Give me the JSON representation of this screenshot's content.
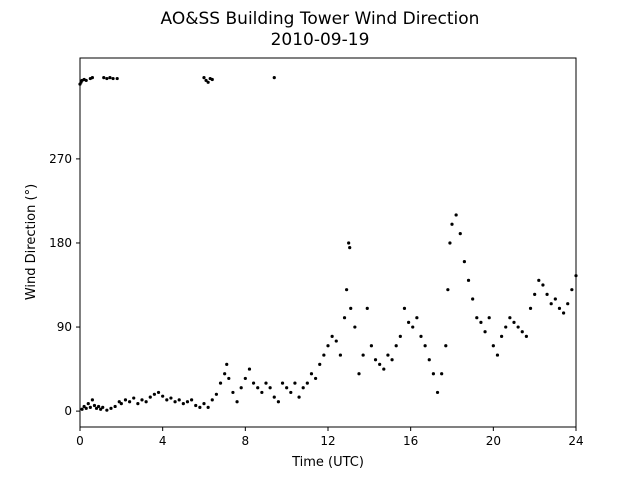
{
  "chart_data": {
    "type": "scatter",
    "title": "AO&SS Building Tower Wind Direction",
    "subtitle": "2010-09-19",
    "xlabel": "Time (UTC)",
    "ylabel": "Wind Direction (°)",
    "xlim": [
      0,
      24
    ],
    "ylim": [
      -17,
      378
    ],
    "xticks": [
      0,
      4,
      8,
      12,
      16,
      20,
      24
    ],
    "yticks": [
      0,
      90,
      180,
      270
    ],
    "grid": false,
    "legend": "none",
    "marker_color": "#000000",
    "series": [
      {
        "points": [
          [
            0.0,
            350
          ],
          [
            0.05,
            352
          ],
          [
            0.1,
            354
          ],
          [
            0.2,
            355
          ],
          [
            0.3,
            354
          ],
          [
            0.5,
            356
          ],
          [
            0.6,
            357
          ],
          [
            1.15,
            357
          ],
          [
            1.3,
            356
          ],
          [
            1.45,
            357
          ],
          [
            1.6,
            356
          ],
          [
            1.8,
            356
          ],
          [
            6.0,
            357
          ],
          [
            6.1,
            354
          ],
          [
            6.2,
            352
          ],
          [
            6.3,
            356
          ],
          [
            6.4,
            355
          ],
          [
            9.4,
            357
          ],
          [
            0.1,
            2
          ],
          [
            0.2,
            5
          ],
          [
            0.3,
            3
          ],
          [
            0.4,
            8
          ],
          [
            0.5,
            4
          ],
          [
            0.6,
            12
          ],
          [
            0.7,
            6
          ],
          [
            0.8,
            3
          ],
          [
            0.9,
            5
          ],
          [
            1.0,
            2
          ],
          [
            1.1,
            4
          ],
          [
            1.3,
            1
          ],
          [
            1.5,
            3
          ],
          [
            1.7,
            5
          ],
          [
            1.9,
            10
          ],
          [
            2.0,
            8
          ],
          [
            2.2,
            12
          ],
          [
            2.4,
            10
          ],
          [
            2.6,
            14
          ],
          [
            2.8,
            8
          ],
          [
            3.0,
            12
          ],
          [
            3.2,
            10
          ],
          [
            3.4,
            15
          ],
          [
            3.6,
            18
          ],
          [
            3.8,
            20
          ],
          [
            4.0,
            16
          ],
          [
            4.2,
            12
          ],
          [
            4.4,
            14
          ],
          [
            4.6,
            10
          ],
          [
            4.8,
            12
          ],
          [
            5.0,
            8
          ],
          [
            5.2,
            10
          ],
          [
            5.4,
            12
          ],
          [
            5.6,
            6
          ],
          [
            5.8,
            4
          ],
          [
            6.0,
            8
          ],
          [
            6.2,
            4
          ],
          [
            6.4,
            12
          ],
          [
            6.6,
            18
          ],
          [
            6.8,
            30
          ],
          [
            7.0,
            40
          ],
          [
            7.1,
            50
          ],
          [
            7.2,
            35
          ],
          [
            7.4,
            20
          ],
          [
            7.6,
            10
          ],
          [
            7.8,
            25
          ],
          [
            8.0,
            35
          ],
          [
            8.2,
            45
          ],
          [
            8.4,
            30
          ],
          [
            8.6,
            25
          ],
          [
            8.8,
            20
          ],
          [
            9.0,
            30
          ],
          [
            9.2,
            25
          ],
          [
            9.4,
            15
          ],
          [
            9.6,
            10
          ],
          [
            9.8,
            30
          ],
          [
            10.0,
            25
          ],
          [
            10.2,
            20
          ],
          [
            10.4,
            30
          ],
          [
            10.6,
            15
          ],
          [
            10.8,
            25
          ],
          [
            11.0,
            30
          ],
          [
            11.2,
            40
          ],
          [
            11.4,
            35
          ],
          [
            11.6,
            50
          ],
          [
            11.8,
            60
          ],
          [
            12.0,
            70
          ],
          [
            12.2,
            80
          ],
          [
            12.4,
            75
          ],
          [
            12.6,
            60
          ],
          [
            12.8,
            100
          ],
          [
            12.9,
            130
          ],
          [
            13.0,
            180
          ],
          [
            13.05,
            175
          ],
          [
            13.1,
            110
          ],
          [
            13.3,
            90
          ],
          [
            13.5,
            40
          ],
          [
            13.7,
            60
          ],
          [
            13.9,
            110
          ],
          [
            14.1,
            70
          ],
          [
            14.3,
            55
          ],
          [
            14.5,
            50
          ],
          [
            14.7,
            45
          ],
          [
            14.9,
            60
          ],
          [
            15.1,
            55
          ],
          [
            15.3,
            70
          ],
          [
            15.5,
            80
          ],
          [
            15.7,
            110
          ],
          [
            15.9,
            95
          ],
          [
            16.1,
            90
          ],
          [
            16.3,
            100
          ],
          [
            16.5,
            80
          ],
          [
            16.7,
            70
          ],
          [
            16.9,
            55
          ],
          [
            17.1,
            40
          ],
          [
            17.3,
            20
          ],
          [
            17.5,
            40
          ],
          [
            17.7,
            70
          ],
          [
            17.8,
            130
          ],
          [
            17.9,
            180
          ],
          [
            18.0,
            200
          ],
          [
            18.2,
            210
          ],
          [
            18.4,
            190
          ],
          [
            18.6,
            160
          ],
          [
            18.8,
            140
          ],
          [
            19.0,
            120
          ],
          [
            19.2,
            100
          ],
          [
            19.4,
            95
          ],
          [
            19.6,
            85
          ],
          [
            19.8,
            100
          ],
          [
            20.0,
            70
          ],
          [
            20.2,
            60
          ],
          [
            20.4,
            80
          ],
          [
            20.6,
            90
          ],
          [
            20.8,
            100
          ],
          [
            21.0,
            95
          ],
          [
            21.2,
            90
          ],
          [
            21.4,
            85
          ],
          [
            21.6,
            80
          ],
          [
            21.8,
            110
          ],
          [
            22.0,
            125
          ],
          [
            22.2,
            140
          ],
          [
            22.4,
            135
          ],
          [
            22.6,
            125
          ],
          [
            22.8,
            115
          ],
          [
            23.0,
            120
          ],
          [
            23.2,
            110
          ],
          [
            23.4,
            105
          ],
          [
            23.6,
            115
          ],
          [
            23.8,
            130
          ],
          [
            24.0,
            145
          ]
        ]
      }
    ]
  }
}
